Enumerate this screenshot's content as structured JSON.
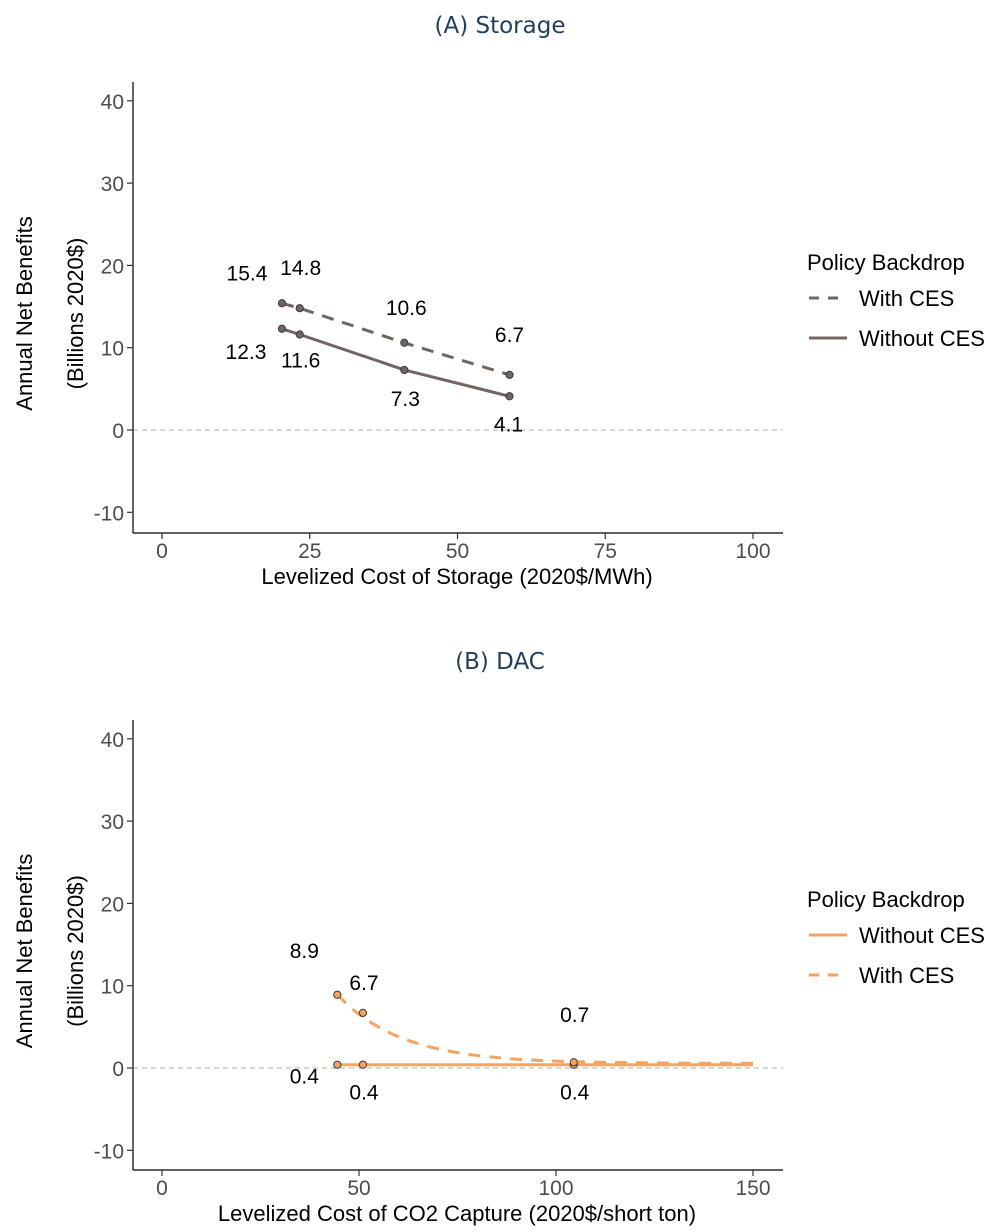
{
  "chart_data": [
    {
      "type": "line",
      "title": "(A) Storage",
      "xlabel": "Levelized Cost of Storage (2020$/MWh)",
      "ylabel": [
        "Annual Net Benefits",
        "(Billions 2020$)"
      ],
      "xlim": [
        0,
        100
      ],
      "ylim": [
        -10,
        40
      ],
      "xticks": [
        0,
        25,
        50,
        75,
        100
      ],
      "yticks": [
        -10,
        0,
        10,
        20,
        30,
        40
      ],
      "zero_line": true,
      "grid": false,
      "legend_title": "Policy Backdrop",
      "legend_position": "right",
      "series": [
        {
          "name": "With CES",
          "dash": "dashed",
          "color": "#706563",
          "x": [
            20.3,
            23.3,
            41.0,
            58.8
          ],
          "y": [
            15.4,
            14.8,
            10.6,
            6.7
          ],
          "labels": [
            "15.4",
            "14.8",
            "10.6",
            "6.7"
          ]
        },
        {
          "name": "Without CES",
          "dash": "solid",
          "color": "#706563",
          "x": [
            20.3,
            23.3,
            41.0,
            58.8
          ],
          "y": [
            12.3,
            11.6,
            7.3,
            4.1
          ],
          "labels": [
            "12.3",
            "11.6",
            "7.3",
            "4.1"
          ]
        }
      ]
    },
    {
      "type": "line",
      "title": "(B) DAC",
      "xlabel": "Levelized Cost of CO2 Capture (2020$/short ton)",
      "ylabel": [
        "Annual Net Benefits",
        "(Billions 2020$)"
      ],
      "xlim": [
        0,
        150
      ],
      "ylim": [
        -10,
        40
      ],
      "xticks": [
        0,
        50,
        100,
        150
      ],
      "yticks": [
        -10,
        0,
        10,
        20,
        30,
        40
      ],
      "zero_line": true,
      "grid": false,
      "legend_title": "Policy Backdrop",
      "legend_position": "right",
      "series": [
        {
          "name": "Without CES",
          "dash": "solid",
          "color": "#f5a35e",
          "x": [
            44.5,
            51.0,
            104.5
          ],
          "y": [
            0.4,
            0.4,
            0.4
          ],
          "labels": [
            "0.4",
            "0.4",
            "0.4"
          ],
          "extend_to_x": 150,
          "extend_y": 0.4
        },
        {
          "name": "With CES",
          "dash": "dashed",
          "color": "#f5a35e",
          "x": [
            44.5,
            51.0,
            104.5
          ],
          "y": [
            8.9,
            6.7,
            0.7
          ],
          "labels": [
            "8.9",
            "6.7",
            "0.7"
          ],
          "extend_to_x": 150,
          "extend_y": 0.55
        }
      ]
    }
  ]
}
